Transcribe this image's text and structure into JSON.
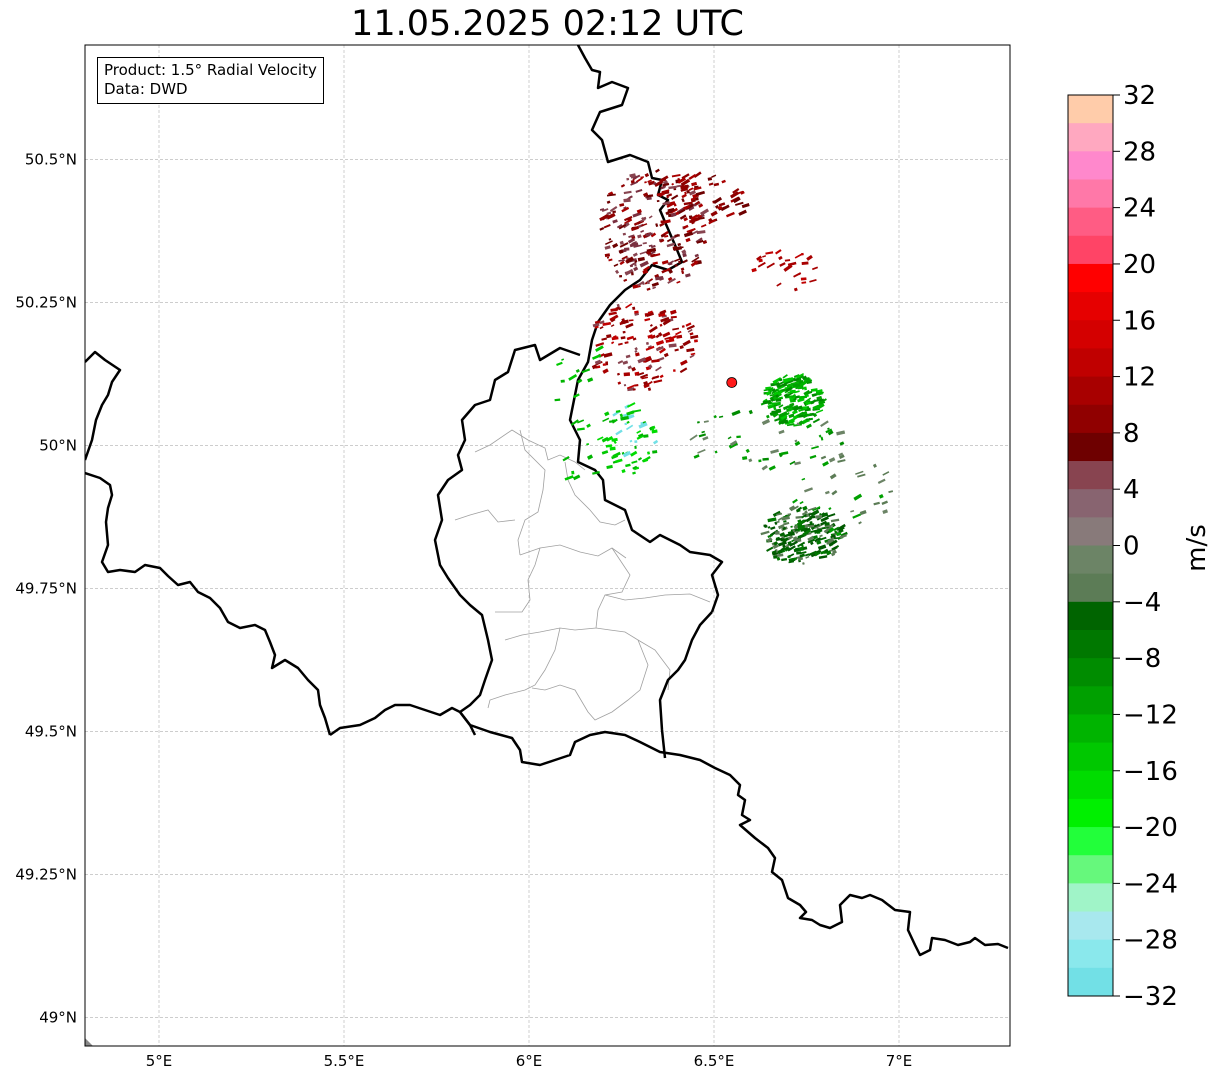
{
  "title": "11.05.2025 02:12 UTC",
  "legend": {
    "product": "Product: 1.5° Radial Velocity",
    "source": "Data: DWD"
  },
  "map": {
    "lon_range": [
      4.8,
      7.3
    ],
    "lat_range": [
      48.95,
      50.7
    ],
    "lon_ticks": [
      {
        "value": 5.0,
        "label": "5°E"
      },
      {
        "value": 5.5,
        "label": "5.5°E"
      },
      {
        "value": 6.0,
        "label": "6°E"
      },
      {
        "value": 6.5,
        "label": "6.5°E"
      },
      {
        "value": 7.0,
        "label": "7°E"
      }
    ],
    "lat_ticks": [
      {
        "value": 50.5,
        "label": "50.5°N"
      },
      {
        "value": 50.25,
        "label": "50.25°N"
      },
      {
        "value": 50.0,
        "label": "50°N"
      },
      {
        "value": 49.75,
        "label": "49.75°N"
      },
      {
        "value": 49.5,
        "label": "49.5°N"
      },
      {
        "value": 49.25,
        "label": "49.25°N"
      },
      {
        "value": 49.0,
        "label": "49°N"
      }
    ],
    "grid": true,
    "radar_site": {
      "lon": 6.548,
      "lat": 50.11,
      "color": "#ff1a1a"
    },
    "border_color": "#000000",
    "district_color": "#a0a0a0"
  },
  "colorbar": {
    "label": "m/s",
    "min": -32,
    "max": 32,
    "ticks": [
      "32",
      "28",
      "24",
      "20",
      "16",
      "12",
      "8",
      "4",
      "0",
      "−4",
      "−8",
      "−12",
      "−16",
      "−20",
      "−24",
      "−28",
      "−32"
    ],
    "colors_top_to_bottom": [
      "#ffccaa",
      "#ffa8c0",
      "#ff88cc",
      "#ff78a8",
      "#ff5c84",
      "#ff4466",
      "#ff0000",
      "#e60000",
      "#d40000",
      "#c00000",
      "#a80000",
      "#900000",
      "#6e0000",
      "#884450",
      "#886470",
      "#887a7a",
      "#6c8466",
      "#5c7c56",
      "#006400",
      "#007800",
      "#008c00",
      "#00a000",
      "#00b400",
      "#00c800",
      "#00dc00",
      "#00f000",
      "#22ff3a",
      "#66f87c",
      "#a0f4c8",
      "#a8e8ee",
      "#8ae8ec",
      "#72e0e6"
    ]
  }
}
